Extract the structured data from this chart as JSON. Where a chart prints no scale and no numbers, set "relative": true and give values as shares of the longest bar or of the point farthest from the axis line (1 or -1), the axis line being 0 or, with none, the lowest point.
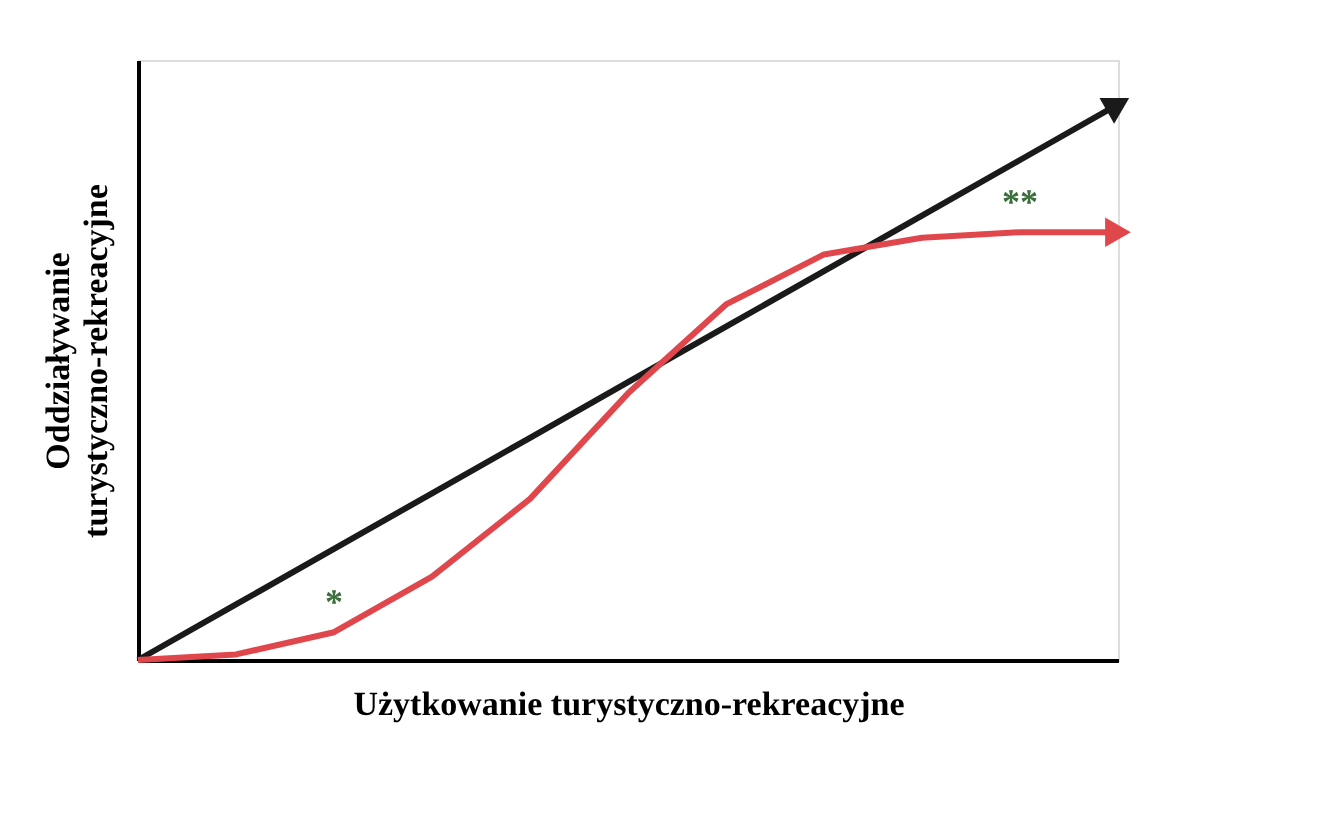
{
  "chart_data": {
    "type": "line",
    "relative": true,
    "marker": "none",
    "line_style": "solid",
    "xlabel": "Użytkowanie turystyczno-rekreacyjne",
    "ylabel": "Oddziaływanie\nturystyczno-rekreacyjne",
    "categories": [
      null,
      null,
      null,
      null,
      null,
      null,
      null,
      null,
      null,
      null,
      null
    ],
    "series": [
      {
        "color": "#1a1a1a",
        "values": [
          0,
          0.1,
          0.2,
          0.3,
          0.4,
          0.5,
          0.6,
          0.7,
          0.8,
          0.9,
          1
        ]
      },
      {
        "color": "#e0474c",
        "values": [
          0,
          0.01,
          0.05,
          0.15,
          0.29,
          0.48,
          0.64,
          0.73,
          0.76,
          0.77,
          0.77
        ]
      }
    ],
    "annotations": [
      "*",
      "**"
    ]
  }
}
